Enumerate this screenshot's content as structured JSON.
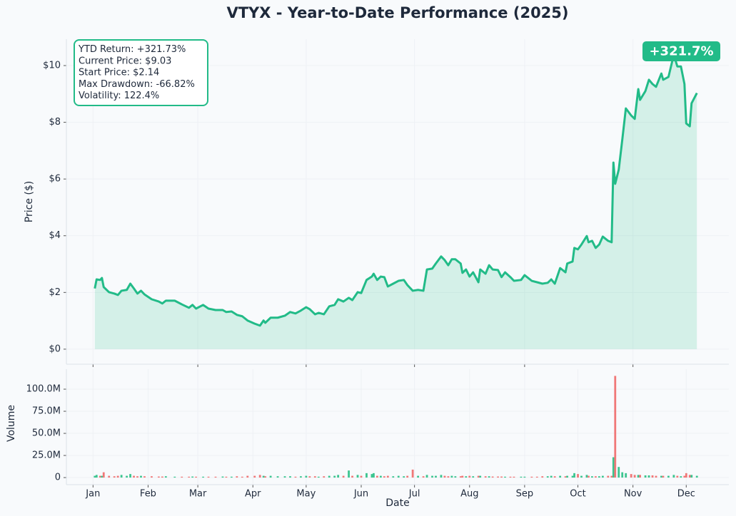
{
  "chart_data": [
    {
      "type": "line",
      "title": "VTYX - Year-to-Date Performance (2025)",
      "ylabel": "Price ($)",
      "color": "#22bb88",
      "x": [
        2,
        3,
        5,
        6,
        7,
        10,
        13,
        15,
        17,
        20,
        22,
        24,
        26,
        28,
        30,
        34,
        38,
        40,
        42,
        47,
        51,
        55,
        57,
        59,
        63,
        66,
        70,
        74,
        76,
        79,
        82,
        85,
        88,
        92,
        95,
        97,
        98,
        101,
        105,
        109,
        112,
        115,
        118,
        121,
        123,
        126,
        128,
        131,
        134,
        137,
        139,
        142,
        145,
        147,
        150,
        152,
        155,
        158,
        159,
        161,
        163,
        165,
        167,
        170,
        173,
        176,
        178,
        181,
        184,
        187,
        189,
        192,
        194,
        197,
        199,
        201,
        203,
        205,
        208,
        209,
        211,
        213,
        215,
        218,
        219,
        222,
        224,
        226,
        229,
        231,
        233,
        236,
        238,
        242,
        244,
        248,
        251,
        254,
        257,
        259,
        261,
        264,
        267,
        268,
        271,
        272,
        274,
        276,
        279,
        280,
        282,
        284,
        286,
        288,
        291,
        293,
        294,
        295,
        297,
        299,
        301,
        304,
        306,
        308,
        309,
        312,
        314,
        316,
        318,
        321,
        322,
        325,
        328,
        330,
        332,
        334,
        335,
        337,
        338,
        341
      ],
      "values": [
        2.14,
        2.46,
        2.44,
        2.51,
        2.19,
        2.01,
        1.96,
        1.91,
        2.06,
        2.09,
        2.31,
        2.14,
        1.96,
        2.06,
        1.93,
        1.76,
        1.68,
        1.61,
        1.71,
        1.71,
        1.58,
        1.46,
        1.56,
        1.43,
        1.56,
        1.43,
        1.38,
        1.38,
        1.31,
        1.33,
        1.21,
        1.16,
        1.01,
        0.9,
        0.83,
        1.01,
        0.93,
        1.11,
        1.11,
        1.18,
        1.31,
        1.26,
        1.36,
        1.48,
        1.41,
        1.23,
        1.28,
        1.23,
        1.51,
        1.56,
        1.76,
        1.68,
        1.81,
        1.73,
        2.01,
        1.98,
        2.44,
        2.56,
        2.66,
        2.44,
        2.56,
        2.54,
        2.21,
        2.31,
        2.41,
        2.44,
        2.26,
        2.06,
        2.09,
        2.06,
        2.81,
        2.84,
        3.02,
        3.27,
        3.14,
        2.96,
        3.17,
        3.17,
        3.02,
        2.69,
        2.81,
        2.56,
        2.71,
        2.36,
        2.81,
        2.66,
        2.96,
        2.81,
        2.79,
        2.54,
        2.71,
        2.54,
        2.41,
        2.44,
        2.61,
        2.41,
        2.36,
        2.31,
        2.34,
        2.46,
        2.31,
        2.86,
        2.71,
        3.02,
        3.09,
        3.57,
        3.52,
        3.69,
        3.99,
        3.77,
        3.82,
        3.57,
        3.69,
        3.97,
        3.82,
        3.77,
        6.58,
        5.83,
        6.33,
        7.39,
        8.49,
        8.24,
        8.12,
        9.17,
        8.79,
        9.1,
        9.5,
        9.35,
        9.25,
        9.72,
        9.5,
        9.6,
        10.38,
        9.97,
        9.97,
        9.35,
        7.96,
        7.86,
        8.67,
        9.03
      ],
      "xlim": [
        -14,
        359
      ],
      "xticks": [
        1,
        60,
        121,
        182,
        244,
        305
      ],
      "ylim": [
        -0.53,
        10.93
      ],
      "yticks": [
        {
          "value": 0,
          "label": "$0"
        },
        {
          "value": 2,
          "label": "$2"
        },
        {
          "value": 4,
          "label": "$4"
        },
        {
          "value": 6,
          "label": "$6"
        },
        {
          "value": 8,
          "label": "$8"
        },
        {
          "value": 10,
          "label": "$10"
        }
      ],
      "grid": true,
      "annotations": [
        "YTD Return: +321.73%",
        "Current Price: $9.03",
        "Start Price: $2.14",
        "Max Drawdown: -66.82%",
        "Volatility: 122.4%"
      ],
      "badge": "+321.7%"
    },
    {
      "type": "bar",
      "ylabel": "Volume",
      "xlabel": "Date",
      "up_color": "#3cc590",
      "down_color": "#f07878",
      "x": [
        2,
        3,
        5,
        6,
        7,
        10,
        13,
        15,
        17,
        20,
        22,
        24,
        26,
        28,
        30,
        34,
        38,
        40,
        42,
        47,
        51,
        55,
        57,
        59,
        63,
        66,
        70,
        74,
        76,
        79,
        82,
        85,
        88,
        92,
        95,
        97,
        98,
        101,
        105,
        109,
        112,
        115,
        118,
        121,
        123,
        126,
        128,
        131,
        134,
        137,
        139,
        142,
        145,
        147,
        150,
        152,
        155,
        158,
        159,
        161,
        163,
        165,
        167,
        170,
        173,
        176,
        178,
        181,
        184,
        187,
        189,
        192,
        194,
        197,
        199,
        201,
        203,
        205,
        208,
        209,
        211,
        213,
        215,
        218,
        219,
        222,
        224,
        226,
        229,
        231,
        233,
        236,
        238,
        242,
        244,
        248,
        251,
        254,
        257,
        259,
        261,
        264,
        267,
        268,
        271,
        272,
        274,
        276,
        279,
        280,
        282,
        284,
        286,
        288,
        291,
        293,
        294,
        295,
        297,
        299,
        301,
        304,
        306,
        308,
        309,
        312,
        314,
        316,
        318,
        321,
        322,
        325,
        328,
        330,
        332,
        334,
        335,
        337,
        338,
        341
      ],
      "values": [
        2000000,
        3000000,
        2000000,
        2000000,
        6000000,
        2000000,
        1500000,
        2000000,
        3000000,
        2000000,
        4000000,
        2000000,
        1500000,
        2000000,
        1500000,
        1500000,
        1200000,
        1200000,
        1500000,
        1000000,
        1000000,
        1000000,
        1200000,
        1000000,
        1000000,
        1000000,
        1000000,
        1200000,
        1000000,
        1000000,
        1500000,
        1000000,
        2000000,
        2000000,
        3000000,
        2000000,
        1500000,
        2000000,
        1500000,
        1500000,
        1500000,
        1000000,
        1500000,
        2000000,
        1500000,
        1500000,
        1000000,
        1500000,
        2000000,
        2000000,
        3000000,
        2000000,
        8000000,
        2000000,
        3000000,
        2000000,
        5000000,
        4000000,
        5000000,
        2000000,
        2000000,
        1500000,
        2000000,
        1500000,
        2000000,
        1500000,
        2000000,
        9000000,
        2000000,
        1500000,
        3000000,
        2000000,
        2000000,
        3000000,
        2000000,
        1500000,
        2000000,
        1500000,
        1500000,
        2000000,
        1500000,
        2000000,
        1500000,
        2000000,
        2000000,
        1500000,
        1500000,
        1200000,
        1200000,
        1200000,
        1000000,
        1000000,
        1000000,
        1000000,
        1000000,
        1000000,
        1000000,
        1500000,
        1500000,
        2000000,
        1500000,
        2000000,
        1500000,
        2000000,
        2000000,
        5000000,
        4000000,
        2000000,
        3000000,
        2000000,
        1500000,
        1500000,
        1500000,
        2000000,
        2000000,
        2000000,
        23000000,
        115000000,
        12000000,
        6000000,
        5000000,
        4000000,
        3000000,
        3000000,
        3000000,
        2500000,
        2500000,
        2500000,
        2000000,
        2000000,
        2000000,
        2000000,
        3000000,
        2000000,
        1500000,
        2000000,
        5000000,
        3000000,
        3000000,
        2000000
      ],
      "xlim": [
        -14,
        359
      ],
      "xticks": [
        {
          "value": 1,
          "label": "Jan"
        },
        {
          "value": 32,
          "label": "Feb"
        },
        {
          "value": 60,
          "label": "Mar"
        },
        {
          "value": 91,
          "label": "Apr"
        },
        {
          "value": 121,
          "label": "May"
        },
        {
          "value": 152,
          "label": "Jun"
        },
        {
          "value": 182,
          "label": "Jul"
        },
        {
          "value": 213,
          "label": "Aug"
        },
        {
          "value": 244,
          "label": "Sep"
        },
        {
          "value": 274,
          "label": "Oct"
        },
        {
          "value": 305,
          "label": "Nov"
        },
        {
          "value": 335,
          "label": "Dec"
        }
      ],
      "ylim": [
        -8000000,
        122600000
      ],
      "yticks": [
        0,
        {
          "value": 25000000,
          "label": "25.0M"
        },
        {
          "value": 50000000,
          "label": "50.0M"
        },
        {
          "value": 75000000,
          "label": "75.0M"
        },
        {
          "value": 100000000,
          "label": "100.0M"
        }
      ],
      "grid": true
    }
  ]
}
